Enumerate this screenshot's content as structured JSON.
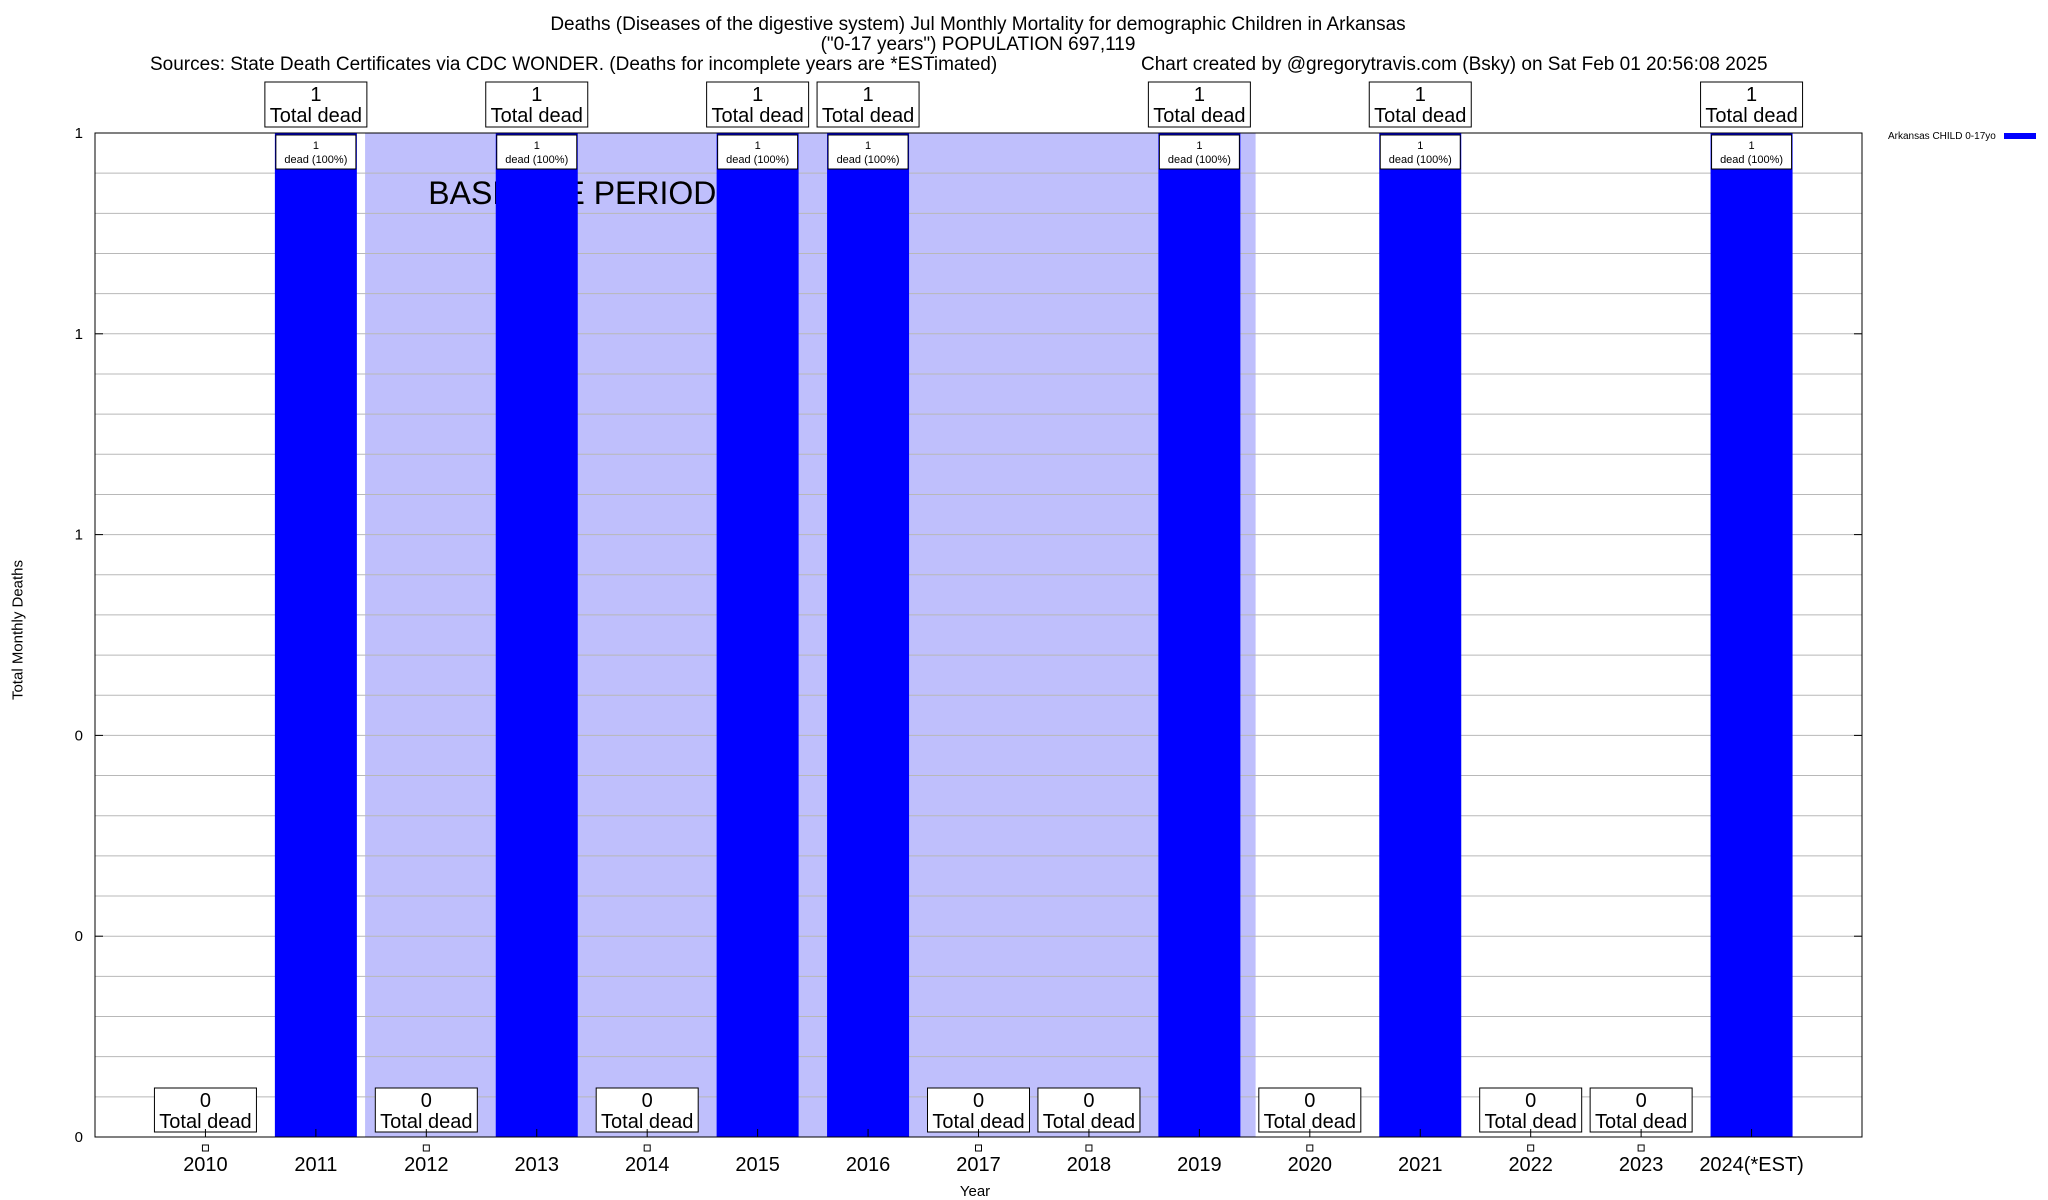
{
  "header": {
    "title_line1": "Deaths (Diseases of the digestive system) Jul Monthly Mortality for demographic Children in Arkansas",
    "title_line2": "(\"0-17 years\") POPULATION 697,119",
    "sources": "Sources: State Death Certificates via CDC WONDER. (Deaths for incomplete years are *ESTimated)",
    "credit": "Chart created by @gregorytravis.com (Bsky) on Sat Feb 01 20:56:08 2025"
  },
  "chart_data": {
    "type": "bar",
    "xlabel": "Year",
    "ylabel": "Total Monthly Deaths",
    "ylim": [
      0,
      1
    ],
    "ytick_labels": [
      "0",
      "0",
      "0",
      "1",
      "1",
      "1"
    ],
    "categories": [
      "2010",
      "2011",
      "2012",
      "2013",
      "2014",
      "2015",
      "2016",
      "2017",
      "2018",
      "2019",
      "2020",
      "2021",
      "2022",
      "2023",
      "2024(*EST)"
    ],
    "series": [
      {
        "name": "Arkansas CHILD 0-17yo",
        "color": "#0000ff",
        "values": [
          0,
          1,
          0,
          1,
          0,
          1,
          1,
          0,
          0,
          1,
          0,
          1,
          0,
          0,
          1
        ]
      }
    ],
    "total_label_suffix": "Total dead",
    "bar_inner_label": "dead (100%)",
    "baseline_label": "BASELINE PERIOD",
    "baseline_range": [
      "2012",
      "2019"
    ],
    "baseline_color": "#bfbffc",
    "grid": true,
    "legend_position": "top-right, outside plot"
  }
}
